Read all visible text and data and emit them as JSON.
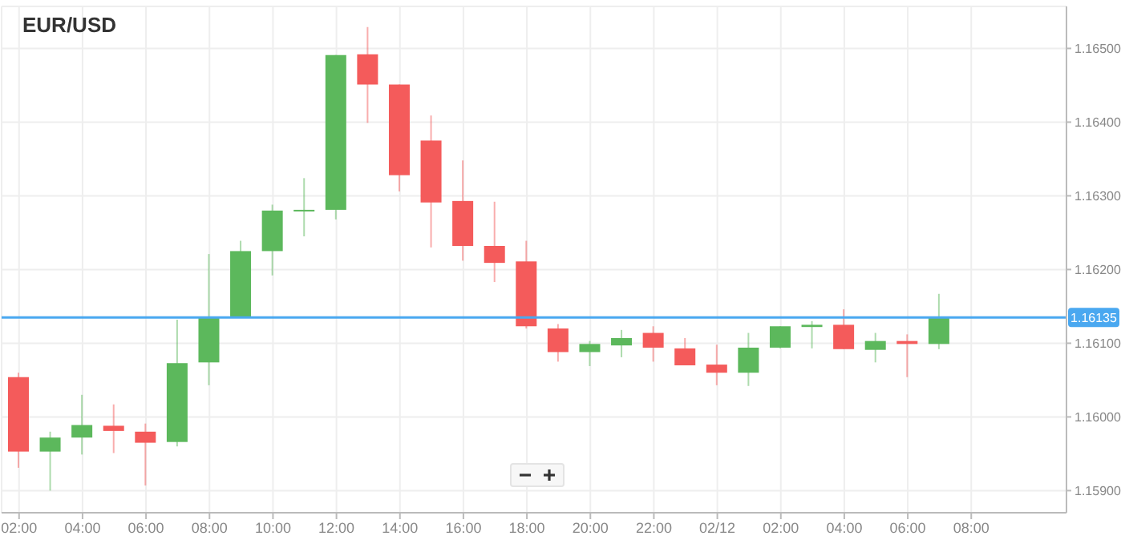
{
  "chart_data": {
    "type": "candlestick",
    "title": "EUR/USD",
    "x": [
      "--12-01T02:00",
      "--12-01T03:00",
      "--12-01T04:00",
      "--12-01T05:00",
      "--12-01T06:00",
      "--12-01T07:00",
      "--12-01T08:00",
      "--12-01T09:00",
      "--12-01T10:00",
      "--12-01T11:00",
      "--12-01T12:00",
      "--12-01T13:00",
      "--12-01T14:00",
      "--12-01T15:00",
      "--12-01T16:00",
      "--12-01T17:00",
      "--12-01T18:00",
      "--12-01T19:00",
      "--12-01T20:00",
      "--12-01T21:00",
      "--12-01T22:00",
      "--12-01T23:00",
      "--12-02T00:00",
      "--12-02T01:00",
      "--12-02T02:00",
      "--12-02T03:00",
      "--12-02T04:00",
      "--12-02T05:00",
      "--12-02T06:00",
      "--12-02T07:00"
    ],
    "ohlc": [
      [
        1.16054,
        1.1606,
        1.15931,
        1.15953
      ],
      [
        1.15953,
        1.1598,
        1.159,
        1.15972
      ],
      [
        1.15972,
        1.1603,
        1.15949,
        1.15989
      ],
      [
        1.15988,
        1.16017,
        1.15951,
        1.15981
      ],
      [
        1.1598,
        1.15991,
        1.15907,
        1.15965
      ],
      [
        1.15966,
        1.16132,
        1.1596,
        1.16073
      ],
      [
        1.16074,
        1.16221,
        1.16043,
        1.16136
      ],
      [
        1.16136,
        1.16239,
        1.16136,
        1.16225
      ],
      [
        1.16225,
        1.16288,
        1.16192,
        1.1628
      ],
      [
        1.1628,
        1.16324,
        1.16245,
        1.16281
      ],
      [
        1.16281,
        1.16491,
        1.16268,
        1.16491
      ],
      [
        1.16492,
        1.16529,
        1.16399,
        1.16451
      ],
      [
        1.16451,
        1.16451,
        1.16306,
        1.16328
      ],
      [
        1.16375,
        1.16409,
        1.1623,
        1.16291
      ],
      [
        1.16293,
        1.16348,
        1.16212,
        1.16232
      ],
      [
        1.16232,
        1.16292,
        1.16183,
        1.16209
      ],
      [
        1.16211,
        1.16239,
        1.1612,
        1.16123
      ],
      [
        1.1612,
        1.16126,
        1.16075,
        1.16088
      ],
      [
        1.16088,
        1.16103,
        1.16069,
        1.16099
      ],
      [
        1.16097,
        1.16118,
        1.16081,
        1.16107
      ],
      [
        1.16114,
        1.16123,
        1.16075,
        1.16094
      ],
      [
        1.16093,
        1.16107,
        1.1607,
        1.1607
      ],
      [
        1.16071,
        1.16098,
        1.16043,
        1.1606
      ],
      [
        1.1606,
        1.16114,
        1.16042,
        1.16094
      ],
      [
        1.16094,
        1.16123,
        1.16093,
        1.16123
      ],
      [
        1.16122,
        1.1613,
        1.16093,
        1.16125
      ],
      [
        1.16125,
        1.16146,
        1.16092,
        1.16092
      ],
      [
        1.16091,
        1.16114,
        1.16074,
        1.16103
      ],
      [
        1.16103,
        1.16112,
        1.16054,
        1.16099
      ],
      [
        1.16099,
        1.16167,
        1.16092,
        1.16135
      ]
    ],
    "colors": [
      "#f45b5b",
      "#5cb85c",
      "#5cb85c",
      "#f45b5b",
      "#f45b5b",
      "#5cb85c",
      "#5cb85c",
      "#5cb85c",
      "#5cb85c",
      "#5cb85c",
      "#5cb85c",
      "#f45b5b",
      "#f45b5b",
      "#f45b5b",
      "#f45b5b",
      "#f45b5b",
      "#f45b5b",
      "#f45b5b",
      "#5cb85c",
      "#5cb85c",
      "#f45b5b",
      "#f45b5b",
      "#f45b5b",
      "#5cb85c",
      "#5cb85c",
      "#5cb85c",
      "#f45b5b",
      "#5cb85c",
      "#f45b5b",
      "#5cb85c"
    ],
    "xlim": [
      "--12-01T01:27",
      "--12-02T11:00"
    ],
    "xticks": [
      {
        "value": "--12-01T02:00",
        "label": "02:00"
      },
      {
        "value": "--12-01T04:00",
        "label": "04:00"
      },
      {
        "value": "--12-01T06:00",
        "label": "06:00"
      },
      {
        "value": "--12-01T08:00",
        "label": "08:00"
      },
      {
        "value": "--12-01T10:00",
        "label": "10:00"
      },
      {
        "value": "--12-01T12:00",
        "label": "12:00"
      },
      {
        "value": "--12-01T14:00",
        "label": "14:00"
      },
      {
        "value": "--12-01T16:00",
        "label": "16:00"
      },
      {
        "value": "--12-01T18:00",
        "label": "18:00"
      },
      {
        "value": "--12-01T20:00",
        "label": "20:00"
      },
      {
        "value": "--12-01T22:00",
        "label": "22:00"
      },
      {
        "value": "--12-02T00:00",
        "label": "02/12"
      },
      {
        "value": "--12-02T02:00",
        "label": "02:00"
      },
      {
        "value": "--12-02T04:00",
        "label": "04:00"
      },
      {
        "value": "--12-02T06:00",
        "label": "06:00"
      },
      {
        "value": "--12-02T08:00",
        "label": "08:00"
      }
    ],
    "ylim": [
      1.1587,
      1.16557
    ],
    "yticks": [
      {
        "value": 1.159,
        "label": "1.15900"
      },
      {
        "value": 1.16,
        "label": "1.16000"
      },
      {
        "value": 1.161,
        "label": "1.16100"
      },
      {
        "value": 1.162,
        "label": "1.16200"
      },
      {
        "value": 1.163,
        "label": "1.16300"
      },
      {
        "value": 1.164,
        "label": "1.16400"
      },
      {
        "value": 1.165,
        "label": "1.16500"
      }
    ],
    "grid": true,
    "ref_lines": [
      {
        "axis": "y",
        "value": 1.16135,
        "label": "1.16135",
        "color": "#4aa8f0"
      }
    ]
  }
}
